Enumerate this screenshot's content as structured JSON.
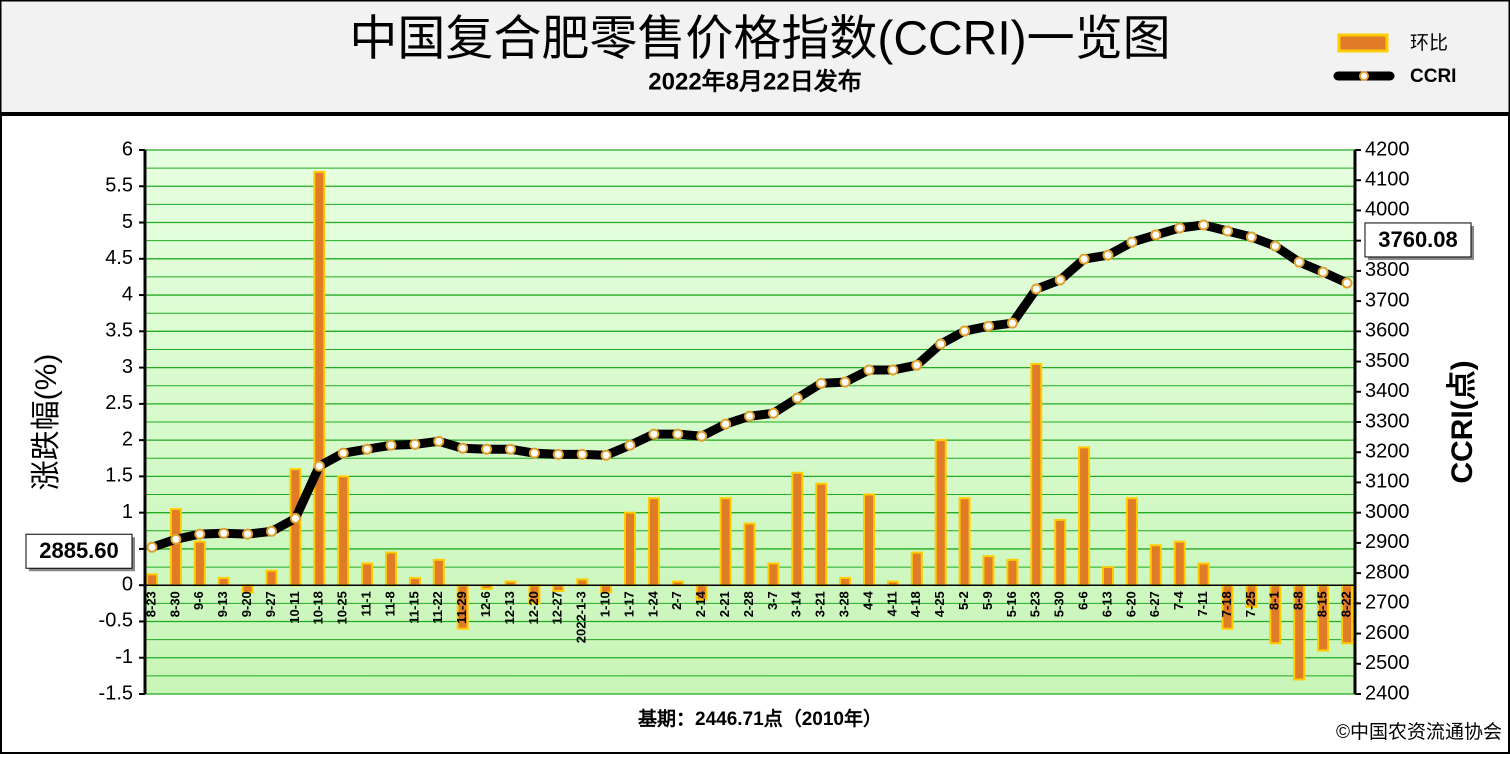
{
  "chart_data": {
    "type": "bar-line",
    "title": "中国复合肥零售价格指数(CCRI)一览图",
    "subtitle": "2022年8月22日发布",
    "y_label": "涨跌幅(%)",
    "y2_label": "CCRI(点)",
    "base_note": "基期：2446.71点（2010年）",
    "source": "©中国农资流通协会",
    "categories": [
      "8-23",
      "8-30",
      "9-6",
      "9-13",
      "9-20",
      "9-27",
      "10-11",
      "10-18",
      "10-25",
      "11-1",
      "11-8",
      "11-15",
      "11-22",
      "11-29",
      "12-6",
      "12-13",
      "12-20",
      "12-27",
      "2022-1-3",
      "1-10",
      "1-17",
      "1-24",
      "2-7",
      "2-14",
      "2-21",
      "2-28",
      "3-7",
      "3-14",
      "3-21",
      "3-28",
      "4-4",
      "4-11",
      "4-18",
      "4-25",
      "5-2",
      "5-9",
      "5-16",
      "5-23",
      "5-30",
      "6-6",
      "6-13",
      "6-20",
      "6-27",
      "7-4",
      "7-11",
      "7-18",
      "7-25",
      "8-1",
      "8-8",
      "8-15",
      "8-22"
    ],
    "series": [
      {
        "name": "环比",
        "type": "bar",
        "color": "#e07b28",
        "edge": "#ffcc00",
        "values": [
          0.15,
          1.05,
          0.6,
          0.1,
          -0.1,
          0.2,
          1.6,
          5.7,
          1.5,
          0.3,
          0.45,
          0.1,
          0.35,
          -0.6,
          -0.05,
          0.05,
          -0.25,
          -0.08,
          0.08,
          -0.1,
          1.0,
          1.2,
          0.05,
          -0.2,
          1.2,
          0.85,
          0.3,
          1.55,
          1.4,
          0.1,
          1.25,
          0.05,
          0.45,
          2.0,
          1.2,
          0.4,
          0.35,
          3.05,
          0.9,
          1.9,
          0.25,
          1.2,
          0.55,
          0.6,
          0.3,
          -0.6,
          -0.3,
          -0.8,
          -1.3,
          -0.9,
          -0.8
        ]
      },
      {
        "name": "CCRI",
        "type": "line",
        "axis": "y2",
        "color": "#000000",
        "values": [
          2885.6,
          2912,
          2929,
          2932,
          2929,
          2938,
          2981,
          3154,
          3197,
          3210,
          3223,
          3226,
          3236,
          3213,
          3210,
          3210,
          3197,
          3193,
          3193,
          3190,
          3223,
          3260,
          3260,
          3253,
          3293,
          3319,
          3329,
          3379,
          3428,
          3432,
          3472,
          3472,
          3488,
          3558,
          3601,
          3617,
          3627,
          3740,
          3770,
          3839,
          3852,
          3895,
          3919,
          3942,
          3952,
          3932,
          3912,
          3882,
          3829,
          3796,
          3760.08
        ],
        "value_labels": [
          "2885.60",
          null,
          null,
          null,
          null,
          null,
          null,
          null,
          null,
          null,
          null,
          null,
          null,
          null,
          null,
          null,
          null,
          null,
          null,
          null,
          null,
          null,
          null,
          null,
          null,
          null,
          null,
          null,
          null,
          null,
          null,
          null,
          null,
          null,
          null,
          null,
          null,
          null,
          null,
          null,
          null,
          null,
          null,
          null,
          null,
          null,
          null,
          null,
          null,
          null,
          "3760.08"
        ]
      }
    ],
    "ylim": [
      -1.5,
      6
    ],
    "yticks": [
      -1.5,
      -1,
      -0.5,
      0,
      0.5,
      1,
      1.5,
      2,
      2.5,
      3,
      3.5,
      4,
      4.5,
      5,
      5.5,
      6
    ],
    "y2lim": [
      2400,
      4200
    ],
    "y2ticks": [
      2400,
      2500,
      2600,
      2700,
      2800,
      2900,
      3000,
      3100,
      3200,
      3300,
      3400,
      3500,
      3600,
      3700,
      3800,
      3900,
      4000,
      4100,
      4200
    ],
    "grid": true
  }
}
